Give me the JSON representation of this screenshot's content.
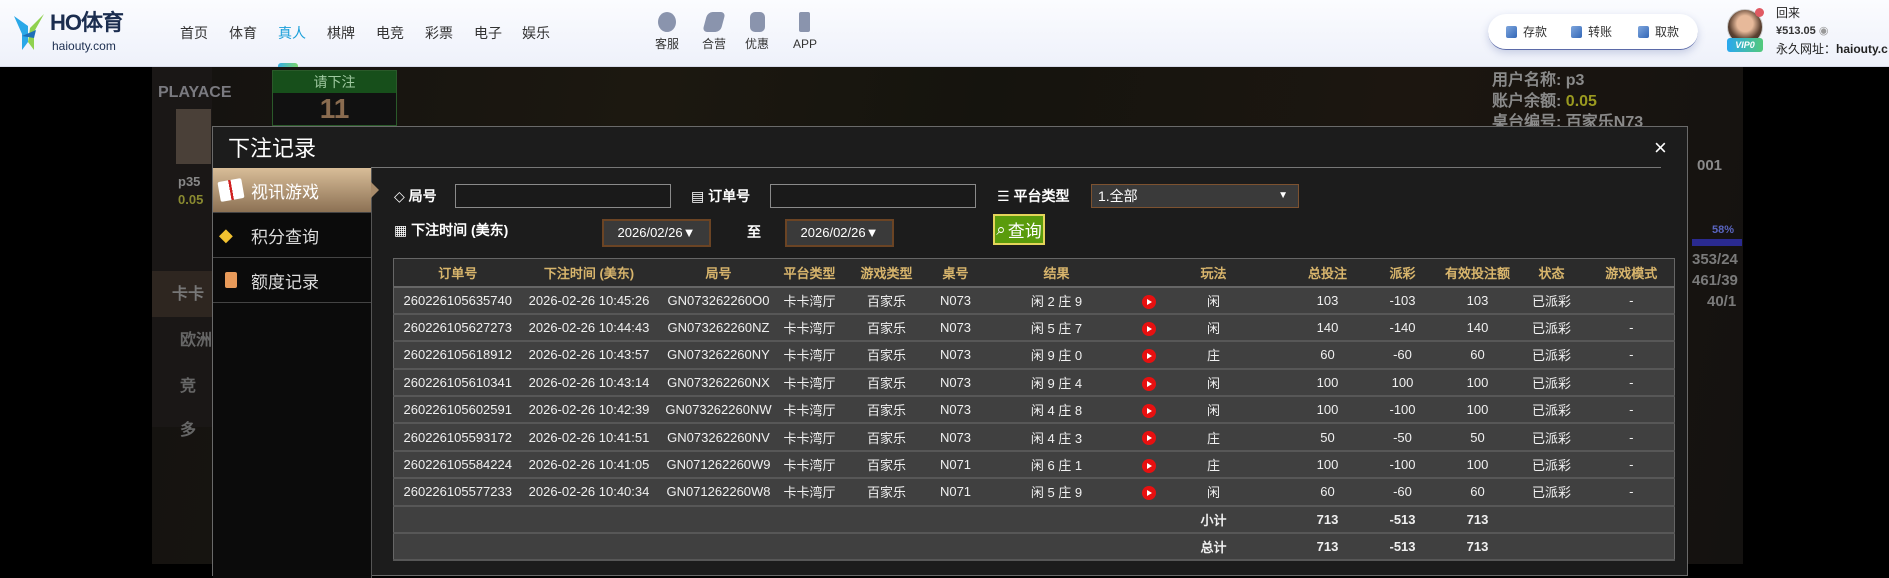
{
  "header": {
    "logo_title": "HO体育",
    "logo_sub": "haiouty.com",
    "nav": [
      "首页",
      "体育",
      "真人",
      "棋牌",
      "电竞",
      "彩票",
      "电子",
      "娱乐"
    ],
    "nav_active": "真人",
    "quick": [
      {
        "label": "客服",
        "icon": "headset-icon"
      },
      {
        "label": "合营",
        "icon": "handshake-icon"
      },
      {
        "label": "优惠",
        "icon": "coupon-icon"
      },
      {
        "label": "APP",
        "icon": "phone-icon"
      }
    ],
    "wallet": {
      "deposit": "存款",
      "transfer": "转账",
      "withdraw": "取款"
    },
    "user": {
      "greeting": "回来",
      "balance": "¥513.05",
      "vip": "VIP0",
      "url_label": "永久网址：",
      "url": "haiouty.c"
    },
    "accent": "#1a9fd9"
  },
  "game_bg": {
    "brand": "PLAYACE",
    "bet_prompt": "请下注",
    "countdown": "11",
    "left_user": "p35",
    "left_balance": "0.05",
    "left_menu": [
      "卡卡",
      "欧洲",
      "竞",
      "多"
    ],
    "info": {
      "username_label": "用户名称: p3",
      "balance_label": "账户余额:",
      "balance": "0.05",
      "table_label": "桌台编号: 百家乐N73",
      "round_tail": "001"
    },
    "progress_pct": "58%",
    "stats": [
      "353/24",
      "461/39",
      "40/1"
    ]
  },
  "modal": {
    "title": "下注记录",
    "close": "×",
    "sidebar": [
      {
        "label": "视讯游戏",
        "icon": "cards-icon",
        "active": true
      },
      {
        "label": "积分查询",
        "icon": "diamond-icon"
      },
      {
        "label": "额度记录",
        "icon": "document-icon"
      }
    ],
    "filters": {
      "round_label": "局号",
      "round_value": "",
      "order_label": "订单号",
      "order_value": "",
      "platform_label": "平台类型",
      "platform_value": "1.全部",
      "time_label": "下注时间 (美东)",
      "date_from": "2026/02/26▼",
      "to_label": "至",
      "date_to": "2026/02/26▼",
      "query": "查询"
    },
    "table": {
      "columns": [
        "订单号",
        "下注时间 (美东)",
        "局号",
        "平台类型",
        "游戏类型",
        "桌号",
        "结果",
        "玩法",
        "总投注",
        "派彩",
        "有效投注额",
        "状态",
        "游戏模式"
      ],
      "rows": [
        [
          "260226105635740",
          "2026-02-26 10:45:26",
          "GN073262260O0",
          "卡卡湾厅",
          "百家乐",
          "N073",
          "闲 2 庄 9",
          "闲",
          "103",
          "-103",
          "103",
          "已派彩",
          "-"
        ],
        [
          "260226105627273",
          "2026-02-26 10:44:43",
          "GN073262260NZ",
          "卡卡湾厅",
          "百家乐",
          "N073",
          "闲 5 庄 7",
          "闲",
          "140",
          "-140",
          "140",
          "已派彩",
          "-"
        ],
        [
          "260226105618912",
          "2026-02-26 10:43:57",
          "GN073262260NY",
          "卡卡湾厅",
          "百家乐",
          "N073",
          "闲 9 庄 0",
          "庄",
          "60",
          "-60",
          "60",
          "已派彩",
          "-"
        ],
        [
          "260226105610341",
          "2026-02-26 10:43:14",
          "GN073262260NX",
          "卡卡湾厅",
          "百家乐",
          "N073",
          "闲 9 庄 4",
          "闲",
          "100",
          "100",
          "100",
          "已派彩",
          "-"
        ],
        [
          "260226105602591",
          "2026-02-26 10:42:39",
          "GN073262260NW",
          "卡卡湾厅",
          "百家乐",
          "N073",
          "闲 4 庄 8",
          "闲",
          "100",
          "-100",
          "100",
          "已派彩",
          "-"
        ],
        [
          "260226105593172",
          "2026-02-26 10:41:51",
          "GN073262260NV",
          "卡卡湾厅",
          "百家乐",
          "N073",
          "闲 4 庄 3",
          "庄",
          "50",
          "-50",
          "50",
          "已派彩",
          "-"
        ],
        [
          "260226105584224",
          "2026-02-26 10:41:05",
          "GN071262260W9",
          "卡卡湾厅",
          "百家乐",
          "N071",
          "闲 6 庄 1",
          "庄",
          "100",
          "-100",
          "100",
          "已派彩",
          "-"
        ],
        [
          "260226105577233",
          "2026-02-26 10:40:34",
          "GN071262260W8",
          "卡卡湾厅",
          "百家乐",
          "N071",
          "闲 5 庄 9",
          "闲",
          "60",
          "-60",
          "60",
          "已派彩",
          "-"
        ]
      ],
      "subtotal": {
        "label": "小计",
        "total_bet": "713",
        "payout": "-513",
        "valid_bet": "713"
      },
      "total": {
        "label": "总计",
        "total_bet": "713",
        "payout": "-513",
        "valid_bet": "713"
      }
    },
    "colors": {
      "loss": "#4cc61e",
      "win": "#c8102e",
      "status": "#18c218",
      "sum": "#e6e600",
      "header_text": "#d8b56c"
    }
  }
}
